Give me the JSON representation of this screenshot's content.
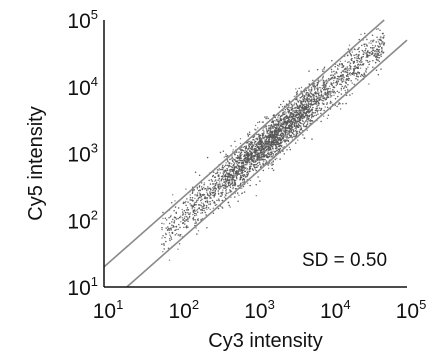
{
  "chart_data": {
    "type": "scatter",
    "title": "",
    "xlabel": "Cy3 intensity",
    "ylabel": "Cy5 intensity",
    "x_scale": "log",
    "y_scale": "log",
    "xlim": [
      10,
      100000
    ],
    "ylim": [
      10,
      100000
    ],
    "x_ticks": [
      {
        "base": "10",
        "exp": "1"
      },
      {
        "base": "10",
        "exp": "2"
      },
      {
        "base": "10",
        "exp": "3"
      },
      {
        "base": "10",
        "exp": "4"
      },
      {
        "base": "10",
        "exp": "5"
      }
    ],
    "y_ticks": [
      {
        "base": "10",
        "exp": "1"
      },
      {
        "base": "10",
        "exp": "2"
      },
      {
        "base": "10",
        "exp": "3"
      },
      {
        "base": "10",
        "exp": "4"
      },
      {
        "base": "10",
        "exp": "5"
      }
    ],
    "annotation": "SD = 0.50",
    "grid": false,
    "point_color": "#555555",
    "line_color": "#8a8a8a",
    "reference_lines": [
      {
        "x": [
          10,
          100000
        ],
        "y": [
          20,
          200000
        ]
      },
      {
        "x": [
          10,
          100000
        ],
        "y": [
          5,
          50000
        ]
      }
    ],
    "series": [
      {
        "points": [
          [
            80,
            65
          ],
          [
            90,
            80
          ],
          [
            100,
            110
          ],
          [
            110,
            90
          ],
          [
            120,
            130
          ],
          [
            150,
            160
          ],
          [
            180,
            150
          ],
          [
            200,
            240
          ],
          [
            220,
            190
          ],
          [
            250,
            300
          ],
          [
            280,
            260
          ],
          [
            300,
            350
          ],
          [
            350,
            320
          ],
          [
            400,
            450
          ],
          [
            450,
            400
          ],
          [
            500,
            560
          ],
          [
            550,
            500
          ],
          [
            600,
            650
          ],
          [
            700,
            620
          ],
          [
            800,
            900
          ],
          [
            900,
            820
          ],
          [
            1000,
            1100
          ],
          [
            1100,
            1000
          ],
          [
            1200,
            1300
          ],
          [
            1300,
            1200
          ],
          [
            1500,
            1600
          ],
          [
            1700,
            1500
          ],
          [
            2000,
            2200
          ],
          [
            2300,
            2000
          ],
          [
            2600,
            2900
          ],
          [
            3000,
            2700
          ],
          [
            3500,
            3800
          ],
          [
            4000,
            3600
          ],
          [
            4500,
            5000
          ],
          [
            5000,
            4500
          ],
          [
            6000,
            6500
          ],
          [
            7000,
            6300
          ],
          [
            8000,
            9000
          ],
          [
            9000,
            8200
          ],
          [
            10000,
            11000
          ],
          [
            12000,
            11000
          ],
          [
            14000,
            15000
          ],
          [
            16000,
            14500
          ],
          [
            18000,
            20000
          ],
          [
            20000,
            18000
          ],
          [
            25000,
            27000
          ],
          [
            30000,
            28000
          ],
          [
            35000,
            38000
          ],
          [
            40000,
            36000
          ],
          [
            45000,
            50000
          ],
          [
            50000,
            45000
          ]
        ]
      }
    ]
  }
}
